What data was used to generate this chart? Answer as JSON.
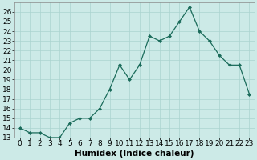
{
  "x": [
    0,
    1,
    2,
    3,
    4,
    5,
    6,
    7,
    8,
    9,
    10,
    11,
    12,
    13,
    14,
    15,
    16,
    17,
    18,
    19,
    20,
    21,
    22,
    23
  ],
  "y": [
    14.0,
    13.5,
    13.5,
    13.0,
    13.0,
    14.5,
    15.0,
    15.0,
    16.0,
    18.0,
    20.5,
    19.0,
    20.5,
    23.5,
    23.0,
    23.5,
    25.0,
    26.5,
    24.0,
    23.0,
    21.5,
    20.5,
    20.5,
    17.5
  ],
  "line_color": "#1a6b5a",
  "marker": "D",
  "marker_size": 2,
  "background_color": "#cceae7",
  "grid_color": "#aad4d0",
  "xlabel": "Humidex (Indice chaleur)",
  "xlim": [
    -0.5,
    23.5
  ],
  "ylim": [
    13,
    27
  ],
  "yticks": [
    13,
    14,
    15,
    16,
    17,
    18,
    19,
    20,
    21,
    22,
    23,
    24,
    25,
    26
  ],
  "xticks": [
    0,
    1,
    2,
    3,
    4,
    5,
    6,
    7,
    8,
    9,
    10,
    11,
    12,
    13,
    14,
    15,
    16,
    17,
    18,
    19,
    20,
    21,
    22,
    23
  ],
  "tick_labelsize": 6.5,
  "xlabel_fontsize": 7.5
}
